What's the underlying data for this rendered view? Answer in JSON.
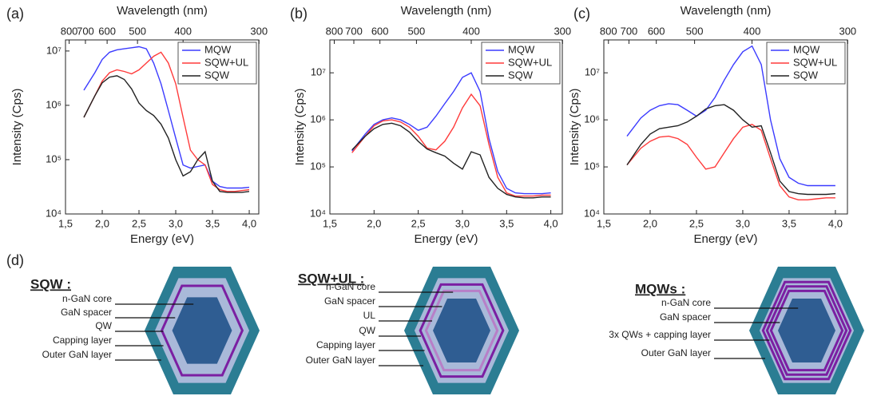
{
  "chart_data": [
    {
      "type": "line",
      "panel": "(a)",
      "x_label": "Energy (eV)",
      "x2_label": "Wavelength (nm)",
      "y_label": "Intensity (Cps)",
      "x": [
        1.75,
        1.9,
        2.0,
        2.1,
        2.2,
        2.3,
        2.4,
        2.5,
        2.6,
        2.7,
        2.8,
        2.9,
        3.0,
        3.1,
        3.2,
        3.3,
        3.4,
        3.5,
        3.6,
        3.7,
        3.8,
        3.9,
        4.0
      ],
      "series": [
        {
          "name": "MQW",
          "color": "#3b3bff",
          "values": [
            1900000,
            4000000,
            7000000,
            9500000,
            10500000,
            11000000,
            11500000,
            12000000,
            11000000,
            6000000,
            2500000,
            800000,
            250000,
            80000,
            70000,
            75000,
            80000,
            40000,
            32000,
            30000,
            30000,
            30000,
            31000
          ]
        },
        {
          "name": "SQW+UL",
          "color": "#ff3b3b",
          "values": [
            600000,
            1500000,
            2800000,
            4000000,
            4500000,
            4200000,
            3800000,
            4500000,
            6000000,
            8000000,
            9500000,
            6000000,
            2500000,
            600000,
            150000,
            100000,
            80000,
            35000,
            28000,
            26000,
            26000,
            27000,
            28000
          ]
        },
        {
          "name": "SQW",
          "color": "#222222",
          "values": [
            600000,
            1500000,
            2600000,
            3300000,
            3500000,
            3000000,
            2000000,
            1100000,
            800000,
            650000,
            450000,
            250000,
            100000,
            50000,
            60000,
            100000,
            140000,
            40000,
            26000,
            25000,
            25000,
            25000,
            26000
          ]
        }
      ],
      "xlim": [
        1.5,
        4.13
      ],
      "ylim": [
        10000,
        16000000
      ],
      "log_y": true,
      "legend": "upper right",
      "xticks": [
        {
          "value": 1.5,
          "label": "1,5"
        },
        {
          "value": 2,
          "label": "2,0"
        },
        {
          "value": 2.5,
          "label": "2,5"
        },
        {
          "value": 3,
          "label": "3,0"
        },
        {
          "value": 3.5,
          "label": "3,5"
        },
        {
          "value": 4,
          "label": "4,0"
        }
      ],
      "x2ticks": [
        800,
        700,
        600,
        500,
        400,
        300
      ],
      "yticks": [
        {
          "value": 10000,
          "label": "10⁴"
        },
        {
          "value": 100000,
          "label": "10⁵"
        },
        {
          "value": 1000000,
          "label": "10⁶"
        },
        {
          "value": 10000000,
          "label": "10⁷"
        }
      ]
    },
    {
      "type": "line",
      "panel": "(b)",
      "x_label": "Energy (eV)",
      "x2_label": "Wavelength (nm)",
      "y_label": "Intensity (Cps)",
      "x": [
        1.75,
        1.9,
        2.0,
        2.1,
        2.2,
        2.3,
        2.4,
        2.5,
        2.6,
        2.7,
        2.8,
        2.9,
        3.0,
        3.1,
        3.2,
        3.3,
        3.4,
        3.5,
        3.6,
        3.7,
        3.8,
        3.9,
        4.0
      ],
      "series": [
        {
          "name": "MQW",
          "color": "#3b3bff",
          "values": [
            220000,
            500000,
            800000,
            1000000,
            1100000,
            1000000,
            800000,
            600000,
            700000,
            1200000,
            2200000,
            4000000,
            8000000,
            10000000,
            4000000,
            400000,
            80000,
            35000,
            28000,
            27000,
            27000,
            27000,
            28000
          ]
        },
        {
          "name": "SQW+UL",
          "color": "#ff3b3b",
          "values": [
            200000,
            450000,
            750000,
            950000,
            1000000,
            900000,
            700000,
            450000,
            250000,
            230000,
            350000,
            700000,
            1800000,
            3500000,
            2000000,
            300000,
            60000,
            28000,
            24000,
            24000,
            24000,
            25000,
            25000
          ]
        },
        {
          "name": "SQW",
          "color": "#222222",
          "values": [
            230000,
            450000,
            650000,
            800000,
            850000,
            750000,
            550000,
            350000,
            240000,
            200000,
            170000,
            120000,
            90000,
            210000,
            180000,
            60000,
            35000,
            26000,
            23000,
            22000,
            22000,
            23000,
            23000
          ]
        }
      ],
      "xlim": [
        1.5,
        4.13
      ],
      "ylim": [
        10000,
        50000000
      ],
      "log_y": true,
      "legend": "upper right",
      "xticks": [
        {
          "value": 1.5,
          "label": "1,5"
        },
        {
          "value": 2,
          "label": "2,0"
        },
        {
          "value": 2.5,
          "label": "2,5"
        },
        {
          "value": 3,
          "label": "3,0"
        },
        {
          "value": 3.5,
          "label": "3,5"
        },
        {
          "value": 4,
          "label": "4,0"
        }
      ],
      "x2ticks": [
        800,
        700,
        600,
        500,
        400,
        300
      ],
      "yticks": [
        {
          "value": 10000,
          "label": "10⁴"
        },
        {
          "value": 100000,
          "label": "10⁵"
        },
        {
          "value": 1000000,
          "label": "10⁶"
        },
        {
          "value": 10000000,
          "label": "10⁷"
        }
      ]
    },
    {
      "type": "line",
      "panel": "(c)",
      "x_label": "Energy (eV)",
      "x2_label": "Wavelength (nm)",
      "y_label": "Intensity (Cps)",
      "x": [
        1.75,
        1.9,
        2.0,
        2.1,
        2.2,
        2.3,
        2.4,
        2.5,
        2.6,
        2.7,
        2.8,
        2.9,
        3.0,
        3.1,
        3.2,
        3.3,
        3.4,
        3.5,
        3.6,
        3.7,
        3.8,
        3.9,
        4.0
      ],
      "series": [
        {
          "name": "MQW",
          "color": "#3b3bff",
          "values": [
            450000,
            1100000,
            1600000,
            2000000,
            2200000,
            2100000,
            1600000,
            1200000,
            1600000,
            3000000,
            7000000,
            15000000,
            28000000,
            37000000,
            15000000,
            1000000,
            150000,
            60000,
            45000,
            40000,
            40000,
            40000,
            40000
          ]
        },
        {
          "name": "SQW+UL",
          "color": "#ff3b3b",
          "values": [
            110000,
            250000,
            350000,
            430000,
            450000,
            400000,
            300000,
            160000,
            90000,
            100000,
            200000,
            400000,
            700000,
            800000,
            600000,
            150000,
            40000,
            23000,
            20000,
            20000,
            21000,
            22000,
            22000
          ]
        },
        {
          "name": "SQW",
          "color": "#222222",
          "values": [
            110000,
            300000,
            500000,
            650000,
            700000,
            750000,
            900000,
            1200000,
            1700000,
            2000000,
            2100000,
            1600000,
            1000000,
            700000,
            750000,
            200000,
            50000,
            30000,
            27000,
            26000,
            26000,
            26000,
            27000
          ]
        }
      ],
      "xlim": [
        1.5,
        4.13
      ],
      "ylim": [
        10000,
        50000000
      ],
      "log_y": true,
      "legend": "upper right",
      "xticks": [
        {
          "value": 1.5,
          "label": "1,5"
        },
        {
          "value": 2,
          "label": "2,0"
        },
        {
          "value": 2.5,
          "label": "2,5"
        },
        {
          "value": 3,
          "label": "3,0"
        },
        {
          "value": 3.5,
          "label": "3,5"
        },
        {
          "value": 4,
          "label": "4,0"
        }
      ],
      "x2ticks": [
        800,
        700,
        600,
        500,
        400,
        300
      ],
      "yticks": [
        {
          "value": 10000,
          "label": "10⁴"
        },
        {
          "value": 100000,
          "label": "10⁵"
        },
        {
          "value": 1000000,
          "label": "10⁶"
        },
        {
          "value": 10000000,
          "label": "10⁷"
        }
      ]
    }
  ],
  "diagram": {
    "label": "(d)",
    "structures": [
      {
        "title": "SQW :",
        "layers": [
          "n-GaN core",
          "GaN spacer",
          "QW",
          "Capping layer",
          "Outer GaN layer"
        ]
      },
      {
        "title": "SQW+UL :",
        "layers": [
          "n-GaN core",
          "GaN spacer",
          "UL",
          "QW",
          "Capping layer",
          "Outer GaN layer"
        ]
      },
      {
        "title": "MQWs :",
        "layers": [
          "n-GaN core",
          "GaN spacer",
          "3x QWs + capping layer",
          "Outer GaN layer"
        ]
      }
    ]
  }
}
